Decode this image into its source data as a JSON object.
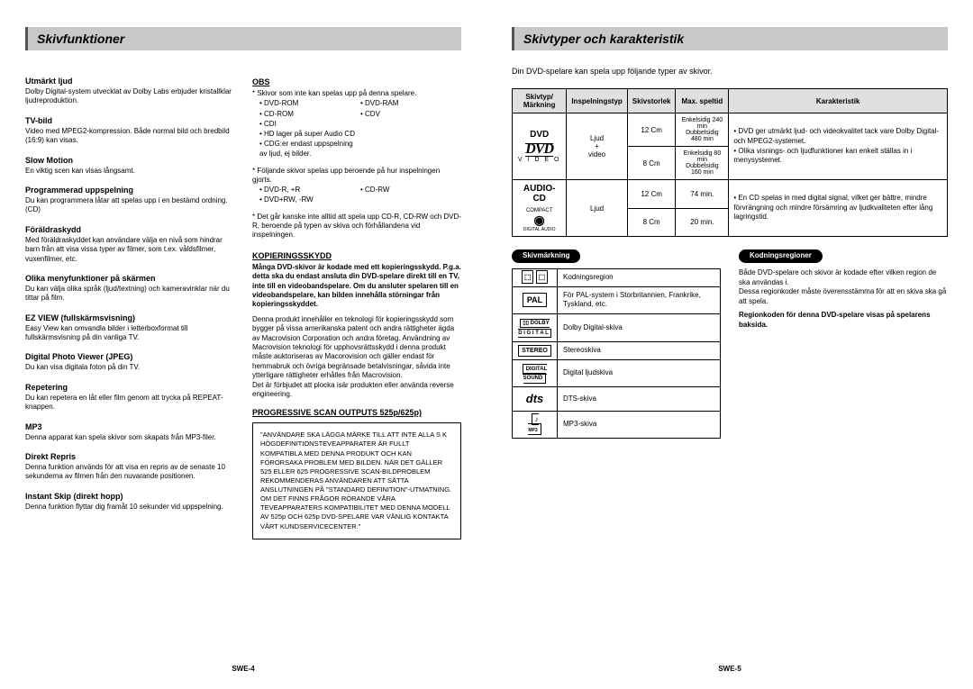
{
  "left": {
    "header": "Skivfunktioner",
    "page_num": "SWE-4",
    "features_col1": [
      {
        "title": "Utmärkt ljud",
        "body": "Dolby Digital-system utvecklat av Dolby Labs erbjuder kristallklar ljudreproduktion."
      },
      {
        "title": "TV-bild",
        "body": "Video med MPEG2-kompression. Både normal bild och bredbild (16:9) kan visas."
      },
      {
        "title": "Slow Motion",
        "body": "En viktig scen kan visas långsamt."
      },
      {
        "title": "Programmerad uppspelning",
        "body": "Du kan programmera låtar att spelas upp i en bestämd ordning. (CD)"
      },
      {
        "title": "Föräldraskydd",
        "body": "Med föräldraskyddet kan användare välja en nivå som hindrar barn från att visa vissa typer av filmer, som t.ex. våldsfilmer, vuxenfilmer, etc."
      },
      {
        "title": "Olika menyfunktioner på skärmen",
        "body": "Du kan välja olika språk (ljud/textning) och kameravinklar när du tittar på film."
      },
      {
        "title": "EZ VIEW (fullskärmsvisning)",
        "body": "Easy View kan omvandla bilder i letterboxformat till fullskärmsvisning på din vanliga TV."
      },
      {
        "title": "Digital Photo Viewer (JPEG)",
        "body": "Du kan visa digitala foton på din TV."
      },
      {
        "title": "Repetering",
        "body": "Du kan repetera en låt eller film genom att trycka på REPEAT-knappen."
      },
      {
        "title": "MP3",
        "body": "Denna apparat kan spela skivor som skapats från MP3-filer."
      },
      {
        "title": "Direkt Repris",
        "body": "Denna funktion används för att visa en repris av de senaste 10 sekunderna av filmen från den nuvarande positionen."
      },
      {
        "title": "Instant Skip (direkt hopp)",
        "body": "Denna funktion flyttar dig framåt 10 sekunder vid uppspelning."
      }
    ],
    "obs_heading": "OBS",
    "obs_intro": "* Skivor som inte kan spelas upp på denna spelare.",
    "obs_bullets": [
      "• DVD-ROM",
      "• DVD-RAM",
      "• CD-ROM",
      "• CDV",
      "• CDI",
      "",
      "• HD lager på super Audio CD",
      "",
      "• CDG:er endast uppspelning av ljud, ej bilder.",
      ""
    ],
    "obs_note2": "* Följande skivor spelas upp beroende på hur inspelningen gjorts.",
    "obs_bullets2": [
      "• DVD-R, +R",
      "• CD-RW",
      "• DVD+RW, -RW",
      ""
    ],
    "obs_note3": "* Det går kanske inte alltid att spela upp CD-R, CD-RW och DVD-R, beroende på typen av skiva och förhållandena vid inspelningen.",
    "copy_heading": "KOPIERINGSSKYDD",
    "copy_bold": "Många DVD-skivor är kodade med ett kopieringsskydd. P.g.a. detta ska du endast ansluta din DVD-spelare direkt till en TV, inte till en videobandspelare. Om du ansluter spelaren till en videobandspelare, kan bilden innehålla störningar från kopieringsskyddet.",
    "copy_body": "Denna produkt innehåller en teknologi för kopieringsskydd som bygger på vissa amerikanska patent och andra rättigheter ägda av Macrovision Corporation och andra företag. Användning av Macrovision teknologi för upphovsrättsskydd i denna produkt måste auktoriseras av Macorovision och gäller endast för hemmabruk och övriga begränsade betalvisningar, såvida inte ytterligare rättigheter erhålles från Macrovision.\nDet är förbjudet att plocka isär produkten eller använda reverse engineering.",
    "ps_heading": "PROGRESSIVE SCAN OUTPUTS 525p/625p)",
    "ps_box": "\"ANVÄNDARE SKA LÄGGA MÄRKE TILL ATT INTE ALLA S K HÖGDEFINITIONSTEVEAPPARATER ÄR FULLT KOMPATIBLA MED DENNA PRODUKT OCH KAN FÖRORSAKA PROBLEM MED BILDEN. NÄR DET GÄLLER 525 ELLER 625 PROGRESSIVE SCAN-BILDPROBLEM REKOMMENDERAS ANVÄNDAREN ATT SÄTTA ANSLUTNINGEN PÅ \"STANDARD DEFINITION\"-UTMATNING. OM DET FINNS FRÅGOR RÖRANDE VÅRA TEVEAPPARATERS KOMPATIBILITET MED DENNA MODELL AV 525p OCH 625p DVD-SPELARE VAR VÄNLIG KONTAKTA VÅRT KUNDSERVICECENTER.\""
  },
  "right": {
    "header": "Skivtyper och karakteristik",
    "intro": "Din DVD-spelare kan spela upp följande typer av skivor.",
    "page_num": "SWE-5",
    "th": [
      "Skivtyp/ Märkning",
      "Inspelningstyp",
      "Skivstorlek",
      "Max. speltid",
      "Karakteristik"
    ],
    "dvd": {
      "label": "DVD",
      "logo_sub": "V I D E O",
      "rec": "Ljud\n+\nvideo",
      "rows": [
        {
          "size": "12 Cm",
          "time": "Enkelsidig 240 min\nDubbelsidig 480 min"
        },
        {
          "size": "8 Cm",
          "time": "Enkelsidig 80 min\nDubbelsidig 160 min"
        }
      ],
      "char": [
        "DVD ger utmärkt ljud- och videokvalitet tack vare Dolby Digital- och MPEG2-systemet.",
        "Olika visnings- och ljudfunktioner kan enkelt ställas in i menysystemet."
      ]
    },
    "cd": {
      "label": "AUDIO-CD",
      "logo_top": "COMPACT",
      "logo_bottom": "DIGITAL AUDIO",
      "rec": "Ljud",
      "rows": [
        {
          "size": "12 Cm",
          "time": "74 min."
        },
        {
          "size": "8 Cm",
          "time": "20 min."
        }
      ],
      "char": [
        "En CD spelas in med digital signal, vilket ger bättre, mindre förvrängning och mindre försämring av ljudkvaliteten efter lång lagringstid."
      ]
    },
    "marks_pill": "Skivmärkning",
    "region_pill": "Kodningsregioner",
    "marks": [
      {
        "icon": "⬚ ⬚",
        "desc": "Kodningsregion"
      },
      {
        "icon": "PAL",
        "desc": "För PAL-system i Storbritannien, Frankrike, Tyskland, etc."
      },
      {
        "icon": "DOLBY",
        "desc": "Dolby Digital-skiva"
      },
      {
        "icon": "STEREO",
        "desc": "Stereoskiva"
      },
      {
        "icon": "DIGITAL\nSOUND",
        "desc": "Digital ljudskiva"
      },
      {
        "icon": "dts",
        "desc": "DTS-skiva"
      },
      {
        "icon": "MP3",
        "desc": "MP3-skiva"
      }
    ],
    "region_body": "Både DVD-spelare och skivor är kodade efter vilken region de ska användas i.\nDessa regionkoder måste överensstämma för att en skiva ska gå att spela.",
    "region_bold": "Regionkoden för denna DVD-spelare visas på spelarens baksida."
  }
}
